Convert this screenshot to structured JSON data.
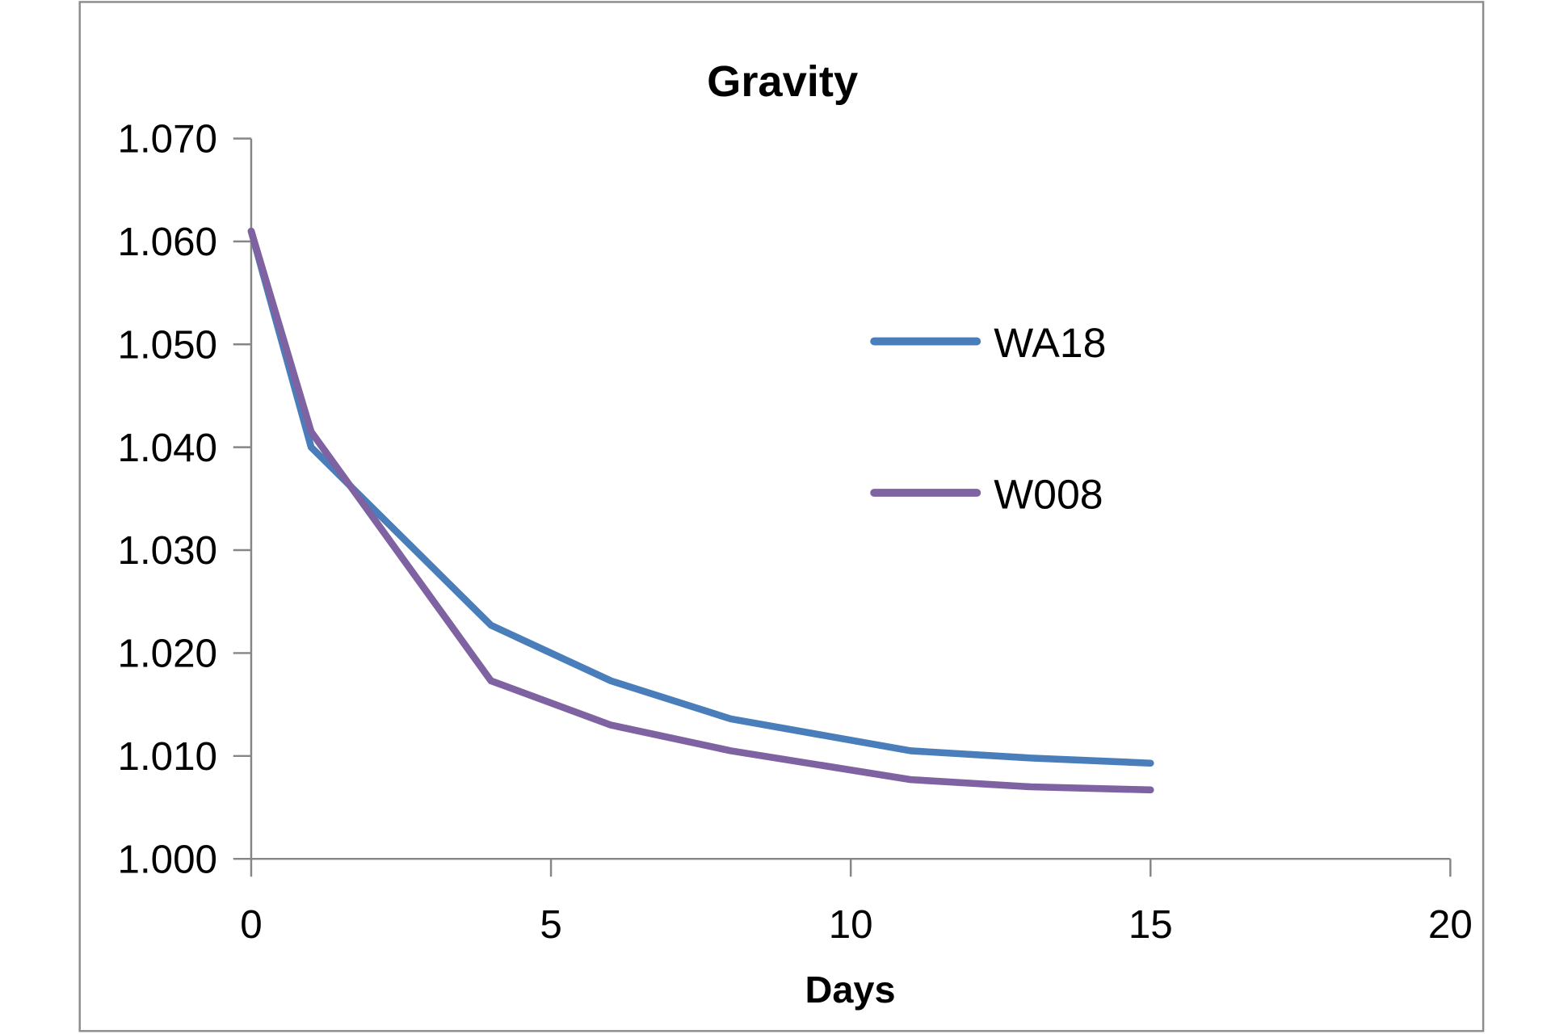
{
  "chart_data": {
    "type": "line",
    "title": "Gravity",
    "xlabel": "Days",
    "ylabel": "",
    "xlim": [
      0,
      20
    ],
    "ylim": [
      1.0,
      1.07
    ],
    "xticks": [
      "0",
      "5",
      "10",
      "15",
      "20"
    ],
    "yticks": [
      "1.000",
      "1.010",
      "1.020",
      "1.030",
      "1.040",
      "1.050",
      "1.060",
      "1.070"
    ],
    "grid": false,
    "legend": "right",
    "series": [
      {
        "name": "WA18",
        "color": "#4a7ebb",
        "x": [
          0,
          1,
          4,
          6,
          8,
          11,
          13,
          15
        ],
        "y": [
          1.061,
          1.04,
          1.0227,
          1.0173,
          1.0136,
          1.0105,
          1.0098,
          1.0093
        ]
      },
      {
        "name": "W008",
        "color": "#7e62a1",
        "x": [
          0,
          1,
          4,
          6,
          8,
          11,
          13,
          15
        ],
        "y": [
          1.061,
          1.0415,
          1.0173,
          1.013,
          1.0105,
          1.0077,
          1.007,
          1.0067
        ]
      }
    ]
  }
}
